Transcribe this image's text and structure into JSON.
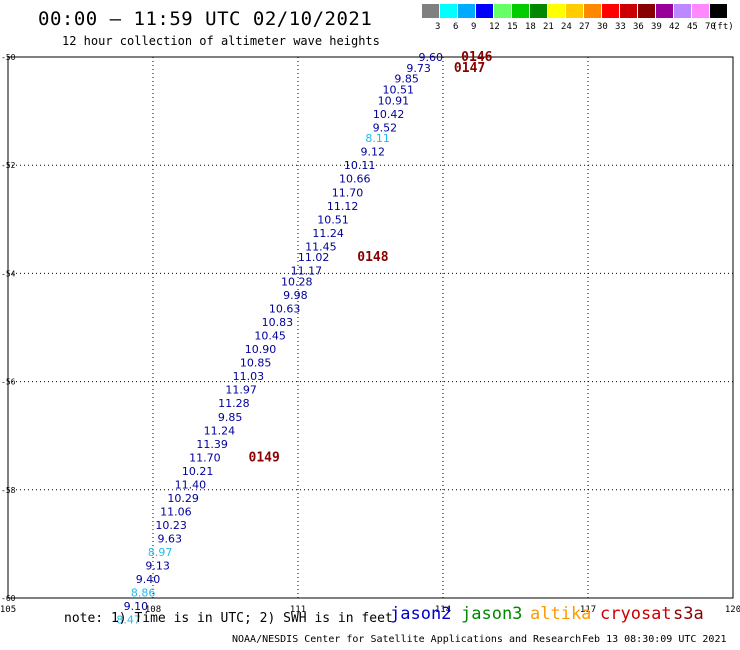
{
  "header": {
    "title": "00:00 – 11:59 UTC 02/10/2021",
    "subtitle": "12 hour collection of altimeter wave heights"
  },
  "legend": {
    "unit": "(ft)",
    "colors": [
      "#808080",
      "#00ffff",
      "#00aaff",
      "#0000ff",
      "#66ff66",
      "#00cc00",
      "#008800",
      "#ffff00",
      "#ffcc00",
      "#ff8800",
      "#ff0000",
      "#cc0000",
      "#880000",
      "#990099",
      "#bb88ff",
      "#ff88ff",
      "#000000"
    ],
    "levels": [
      "3",
      "6",
      "9",
      "12",
      "15",
      "18",
      "21",
      "24",
      "27",
      "30",
      "33",
      "36",
      "39",
      "42",
      "45",
      "70"
    ]
  },
  "map": {
    "lon_range": [
      105,
      120
    ],
    "lat_range": [
      -50,
      -60
    ],
    "lon_ticks": [
      "105",
      "108",
      "111",
      "114",
      "117",
      "120"
    ],
    "lat_ticks": [
      "-50",
      "-52",
      "-54",
      "-56",
      "-58",
      "-60"
    ],
    "wave_heights": [
      {
        "v": "9.60",
        "lat": -50.0,
        "lon": 114.0,
        "c": "#000099"
      },
      {
        "v": "9.73",
        "lat": -50.2,
        "lon": 113.75,
        "c": "#000099"
      },
      {
        "v": "9.85",
        "lat": -50.4,
        "lon": 113.5,
        "c": "#000099"
      },
      {
        "v": "10.51",
        "lat": -50.6,
        "lon": 113.4,
        "c": "#000099"
      },
      {
        "v": "10.91",
        "lat": -50.8,
        "lon": 113.3,
        "c": "#000099"
      },
      {
        "v": "10.42",
        "lat": -51.05,
        "lon": 113.2,
        "c": "#000099"
      },
      {
        "v": "9.52",
        "lat": -51.3,
        "lon": 113.05,
        "c": "#000099"
      },
      {
        "v": "8.11",
        "lat": -51.5,
        "lon": 112.9,
        "c": "#22bbee"
      },
      {
        "v": "9.12",
        "lat": -51.75,
        "lon": 112.8,
        "c": "#000099"
      },
      {
        "v": "10.11",
        "lat": -52.0,
        "lon": 112.6,
        "c": "#000099"
      },
      {
        "v": "10.66",
        "lat": -52.25,
        "lon": 112.5,
        "c": "#000099"
      },
      {
        "v": "11.70",
        "lat": -52.5,
        "lon": 112.35,
        "c": "#000099"
      },
      {
        "v": "11.12",
        "lat": -52.75,
        "lon": 112.25,
        "c": "#000099"
      },
      {
        "v": "10.51",
        "lat": -53.0,
        "lon": 112.05,
        "c": "#000099"
      },
      {
        "v": "11.24",
        "lat": -53.25,
        "lon": 111.95,
        "c": "#000099"
      },
      {
        "v": "11.45",
        "lat": -53.5,
        "lon": 111.8,
        "c": "#000099"
      },
      {
        "v": "11.02",
        "lat": -53.7,
        "lon": 111.65,
        "c": "#000099"
      },
      {
        "v": "11.17",
        "lat": -53.95,
        "lon": 111.5,
        "c": "#000099"
      },
      {
        "v": "10.28",
        "lat": -54.15,
        "lon": 111.3,
        "c": "#000099"
      },
      {
        "v": "9.98",
        "lat": -54.4,
        "lon": 111.2,
        "c": "#000099"
      },
      {
        "v": "10.63",
        "lat": -54.65,
        "lon": 111.05,
        "c": "#000099"
      },
      {
        "v": "10.83",
        "lat": -54.9,
        "lon": 110.9,
        "c": "#000099"
      },
      {
        "v": "10.45",
        "lat": -55.15,
        "lon": 110.75,
        "c": "#000099"
      },
      {
        "v": "10.90",
        "lat": -55.4,
        "lon": 110.55,
        "c": "#000099"
      },
      {
        "v": "10.85",
        "lat": -55.65,
        "lon": 110.45,
        "c": "#000099"
      },
      {
        "v": "11.03",
        "lat": -55.9,
        "lon": 110.3,
        "c": "#000099"
      },
      {
        "v": "11.97",
        "lat": -56.15,
        "lon": 110.15,
        "c": "#000099"
      },
      {
        "v": "11.28",
        "lat": -56.4,
        "lon": 110.0,
        "c": "#000099"
      },
      {
        "v": "9.85",
        "lat": -56.65,
        "lon": 109.85,
        "c": "#000099"
      },
      {
        "v": "11.24",
        "lat": -56.9,
        "lon": 109.7,
        "c": "#000099"
      },
      {
        "v": "11.39",
        "lat": -57.15,
        "lon": 109.55,
        "c": "#000099"
      },
      {
        "v": "11.70",
        "lat": -57.4,
        "lon": 109.4,
        "c": "#000099"
      },
      {
        "v": "10.21",
        "lat": -57.65,
        "lon": 109.25,
        "c": "#000099"
      },
      {
        "v": "11.40",
        "lat": -57.9,
        "lon": 109.1,
        "c": "#000099"
      },
      {
        "v": "10.29",
        "lat": -58.15,
        "lon": 108.95,
        "c": "#000099"
      },
      {
        "v": "11.06",
        "lat": -58.4,
        "lon": 108.8,
        "c": "#000099"
      },
      {
        "v": "10.23",
        "lat": -58.65,
        "lon": 108.7,
        "c": "#000099"
      },
      {
        "v": "9.63",
        "lat": -58.9,
        "lon": 108.6,
        "c": "#000099"
      },
      {
        "v": "8.97",
        "lat": -59.15,
        "lon": 108.4,
        "c": "#22bbee"
      },
      {
        "v": "9.13",
        "lat": -59.4,
        "lon": 108.35,
        "c": "#000099"
      },
      {
        "v": "9.40",
        "lat": -59.65,
        "lon": 108.15,
        "c": "#000099"
      },
      {
        "v": "8.86",
        "lat": -59.9,
        "lon": 108.05,
        "c": "#22bbee"
      },
      {
        "v": "9.10",
        "lat": -60.15,
        "lon": 107.9,
        "c": "#000099"
      },
      {
        "v": "8.47",
        "lat": -60.4,
        "lon": 107.75,
        "c": "#22bbee"
      }
    ],
    "time_labels": [
      {
        "t": "0146",
        "lat": -50.0,
        "lon": 114.7
      },
      {
        "t": "0147",
        "lat": -50.2,
        "lon": 114.55
      },
      {
        "t": "0148",
        "lat": -53.7,
        "lon": 112.55
      },
      {
        "t": "0149",
        "lat": -57.4,
        "lon": 110.3
      }
    ]
  },
  "footer": {
    "note": "note: 1) Time is in UTC; 2) SWH is in feet",
    "missions": [
      {
        "name": "jason2",
        "color": "#0000cc"
      },
      {
        "name": "jason3",
        "color": "#008800"
      },
      {
        "name": "altika",
        "color": "#ff9900"
      },
      {
        "name": "cryosat",
        "color": "#cc0000"
      },
      {
        "name": "s3a",
        "color": "#880000"
      }
    ],
    "credit": "NOAA/NESDIS Center for Satellite Applications and Research",
    "timestamp": "Feb 13 08:30:09 UTC 2021"
  }
}
